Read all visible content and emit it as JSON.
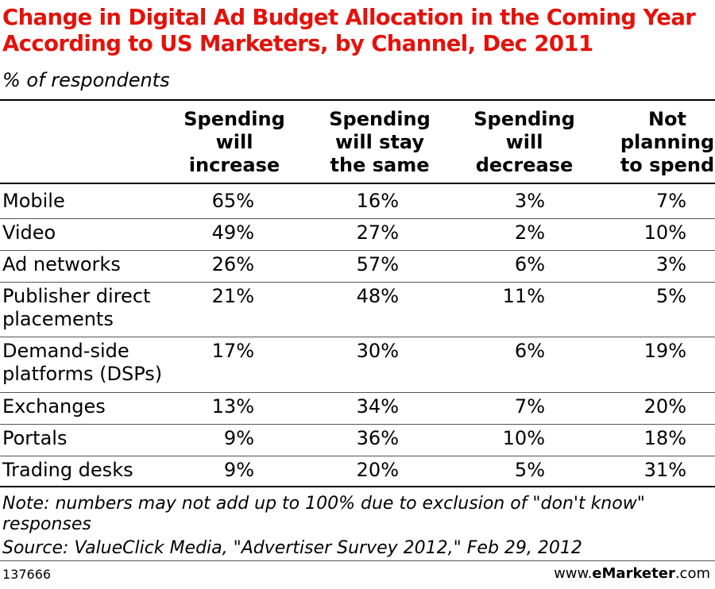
{
  "title": "Change in Digital Ad Budget Allocation in the Coming Year According to US Marketers, by Channel, Dec 2011",
  "subtitle": "% of respondents",
  "columns": [
    "Spending\nwill\nincrease",
    "Spending\nwill stay\nthe same",
    "Spending\nwill\ndecrease",
    "Not\nplanning\nto spend"
  ],
  "rows": [
    {
      "label": "Mobile",
      "values": [
        "65%",
        "16%",
        "3%",
        "7%"
      ]
    },
    {
      "label": "Video",
      "values": [
        "49%",
        "27%",
        "2%",
        "10%"
      ]
    },
    {
      "label": "Ad networks",
      "values": [
        "26%",
        "57%",
        "6%",
        "3%"
      ]
    },
    {
      "label": "Publisher direct\nplacements",
      "values": [
        "21%",
        "48%",
        "11%",
        "5%"
      ]
    },
    {
      "label": "Demand-side\nplatforms (DSPs)",
      "values": [
        "17%",
        "30%",
        "6%",
        "19%"
      ]
    },
    {
      "label": "Exchanges",
      "values": [
        "13%",
        "34%",
        "7%",
        "20%"
      ]
    },
    {
      "label": "Portals",
      "values": [
        "9%",
        "36%",
        "10%",
        "18%"
      ]
    },
    {
      "label": "Trading desks",
      "values": [
        "9%",
        "20%",
        "5%",
        "31%"
      ]
    }
  ],
  "note": "Note: numbers may not add up to 100% due to exclusion of \"don't know\" responses",
  "source": "Source: ValueClick Media, \"Advertiser Survey 2012,\" Feb 29, 2012",
  "footer": {
    "id": "137666",
    "brand_prefix": "www.",
    "brand_name": "eMarketer",
    "brand_suffix": ".com"
  },
  "colors": {
    "title": "#e3120b"
  },
  "chart_data": {
    "type": "table",
    "title": "Change in Digital Ad Budget Allocation in the Coming Year According to US Marketers, by Channel, Dec 2011",
    "subtitle": "% of respondents",
    "columns": [
      "Spending will increase",
      "Spending will stay the same",
      "Spending will decrease",
      "Not planning to spend"
    ],
    "categories": [
      "Mobile",
      "Video",
      "Ad networks",
      "Publisher direct placements",
      "Demand-side platforms (DSPs)",
      "Exchanges",
      "Portals",
      "Trading desks"
    ],
    "series": [
      {
        "name": "Spending will increase",
        "values": [
          65,
          49,
          26,
          21,
          17,
          13,
          9,
          9
        ]
      },
      {
        "name": "Spending will stay the same",
        "values": [
          16,
          27,
          57,
          48,
          30,
          34,
          36,
          20
        ]
      },
      {
        "name": "Spending will decrease",
        "values": [
          3,
          2,
          6,
          11,
          6,
          7,
          10,
          5
        ]
      },
      {
        "name": "Not planning to spend",
        "values": [
          7,
          10,
          3,
          5,
          19,
          20,
          18,
          31
        ]
      }
    ]
  }
}
